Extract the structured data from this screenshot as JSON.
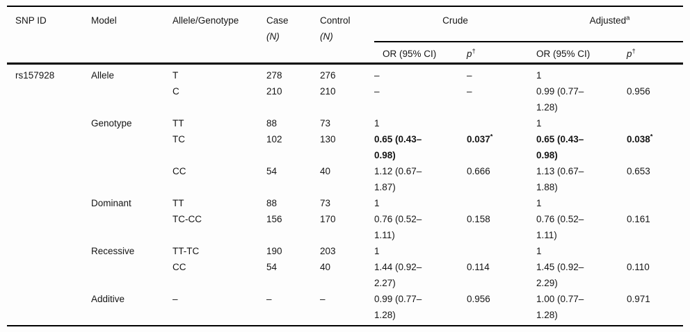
{
  "table": {
    "header": {
      "snp_id": "SNP ID",
      "model": "Model",
      "allele_genotype": "Allele/Genotype",
      "case": "Case",
      "control": "Control",
      "n_label": "(N)",
      "crude": "Crude",
      "adjusted": "Adjusted",
      "adjusted_sup": "a",
      "or_ci": "OR (95% CI)",
      "p": "p",
      "p_sup": "†"
    },
    "rows": [
      {
        "snp": "rs157928",
        "model": "Allele",
        "allele": "T",
        "case": "278",
        "control": "276",
        "stats": [
          {
            "text": "–"
          },
          {
            "text": "–"
          },
          {
            "text": "1"
          },
          {
            "text": ""
          }
        ]
      },
      {
        "snp": "",
        "model": "",
        "allele": "C",
        "case": "210",
        "control": "210",
        "stats": [
          {
            "text": "–"
          },
          {
            "text": "–"
          },
          {
            "text": "0.99 (0.77–\n1.28)"
          },
          {
            "text": "0.956"
          }
        ]
      },
      {
        "snp": "",
        "model": "Genotype",
        "allele": "TT",
        "case": "88",
        "control": "73",
        "stats": [
          {
            "text": "1"
          },
          {
            "text": ""
          },
          {
            "text": "1"
          },
          {
            "text": ""
          }
        ]
      },
      {
        "snp": "",
        "model": "",
        "allele": "TC",
        "case": "102",
        "control": "130",
        "stats": [
          {
            "text": "0.65 (0.43–\n0.98)",
            "bold": true
          },
          {
            "text": "0.037",
            "sup": "*",
            "bold": true
          },
          {
            "text": "0.65 (0.43–\n0.98)",
            "bold": true
          },
          {
            "text": "0.038",
            "sup": "*",
            "bold": true
          }
        ]
      },
      {
        "snp": "",
        "model": "",
        "allele": "CC",
        "case": "54",
        "control": "40",
        "stats": [
          {
            "text": "1.12 (0.67–\n1.87)"
          },
          {
            "text": "0.666"
          },
          {
            "text": "1.13 (0.67–\n1.88)"
          },
          {
            "text": "0.653"
          }
        ]
      },
      {
        "snp": "",
        "model": "Dominant",
        "allele": "TT",
        "case": "88",
        "control": "73",
        "stats": [
          {
            "text": "1"
          },
          {
            "text": ""
          },
          {
            "text": "1"
          },
          {
            "text": ""
          }
        ]
      },
      {
        "snp": "",
        "model": "",
        "allele": "TC-CC",
        "case": "156",
        "control": "170",
        "stats": [
          {
            "text": "0.76 (0.52–\n1.11)"
          },
          {
            "text": "0.158"
          },
          {
            "text": "0.76 (0.52–\n1.11)"
          },
          {
            "text": "0.161"
          }
        ]
      },
      {
        "snp": "",
        "model": "Recessive",
        "allele": "TT-TC",
        "case": "190",
        "control": "203",
        "stats": [
          {
            "text": "1"
          },
          {
            "text": ""
          },
          {
            "text": "1"
          },
          {
            "text": ""
          }
        ]
      },
      {
        "snp": "",
        "model": "",
        "allele": "CC",
        "case": "54",
        "control": "40",
        "stats": [
          {
            "text": "1.44 (0.92–\n2.27)"
          },
          {
            "text": "0.114"
          },
          {
            "text": "1.45 (0.92–\n2.29)"
          },
          {
            "text": "0.110"
          }
        ]
      },
      {
        "snp": "",
        "model": "Additive",
        "allele": "–",
        "case": "–",
        "control": "–",
        "stats": [
          {
            "text": "0.99 (0.77–\n1.28)"
          },
          {
            "text": "0.956"
          },
          {
            "text": "1.00 (0.77–\n1.28)"
          },
          {
            "text": "0.971"
          }
        ]
      }
    ]
  }
}
